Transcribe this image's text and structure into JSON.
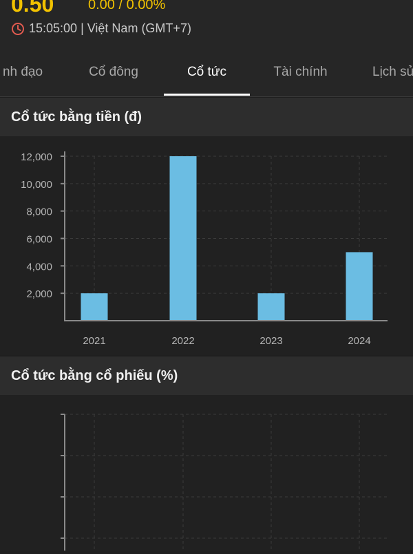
{
  "header": {
    "price": "0.50",
    "change": "0.00 / 0.00%",
    "time": "15:05:00 | Việt Nam (GMT+7)"
  },
  "tabs": [
    {
      "label": "nh đạo"
    },
    {
      "label": "Cổ đông"
    },
    {
      "label": "Cổ tức"
    },
    {
      "label": "Tài chính"
    },
    {
      "label": "Lịch sử"
    }
  ],
  "active_tab": "Cổ tức",
  "colors": {
    "accent": "#f2c200",
    "bar": "#6bbde3",
    "clock": "#e05a4f"
  },
  "sections": {
    "cash": {
      "title": "Cổ tức bằng tiền (đ)"
    },
    "stock": {
      "title": "Cổ tức bằng cổ phiếu (%)"
    }
  },
  "chart_data": [
    {
      "type": "bar",
      "title": "Cổ tức bằng tiền (đ)",
      "categories": [
        "2021",
        "2022",
        "2023",
        "2024"
      ],
      "values": [
        2000,
        12000,
        2000,
        5000
      ],
      "yticks": [
        "2,000",
        "4,000",
        "6,000",
        "8,000",
        "10,000",
        "12,000"
      ],
      "ylim": [
        0,
        12000
      ],
      "grid": true
    },
    {
      "type": "bar",
      "title": "Cổ tức bằng cổ phiếu (%)",
      "categories": [],
      "values": [],
      "grid": true
    }
  ]
}
